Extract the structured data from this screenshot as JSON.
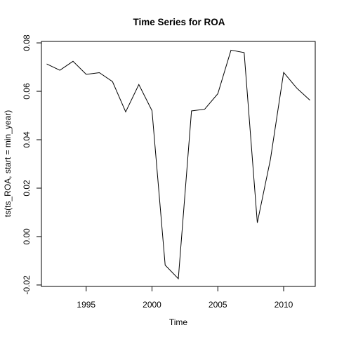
{
  "chart_data": {
    "type": "line",
    "title": "Time Series for ROA",
    "xlabel": "Time",
    "ylabel": "ts(ts_ROA, start = min_year)",
    "xlim": [
      1991.6,
      2012.4
    ],
    "ylim": [
      -0.0206,
      0.0806
    ],
    "x_ticks": [
      1995,
      2000,
      2005,
      2010
    ],
    "x_tick_labels": [
      "1995",
      "2000",
      "2005",
      "2010"
    ],
    "y_ticks": [
      -0.02,
      0.0,
      0.02,
      0.04,
      0.06,
      0.08
    ],
    "y_tick_labels": [
      "-0.02",
      "0.00",
      "0.02",
      "0.04",
      "0.06",
      "0.08"
    ],
    "grid": false,
    "legend": "none",
    "series": [
      {
        "color": "#000000",
        "x": [
          1992,
          1993,
          1994,
          1995,
          1996,
          1997,
          1998,
          1999,
          2000,
          2001,
          2002,
          2003,
          2004,
          2005,
          2006,
          2007,
          2008,
          2009,
          2010,
          2011,
          2012
        ],
        "values": [
          0.0713,
          0.0687,
          0.0724,
          0.067,
          0.0677,
          0.064,
          0.0515,
          0.0628,
          0.052,
          -0.0118,
          -0.0174,
          0.0519,
          0.0526,
          0.059,
          0.077,
          0.076,
          0.0057,
          0.032,
          0.0678,
          0.0613,
          0.0563
        ]
      }
    ]
  }
}
